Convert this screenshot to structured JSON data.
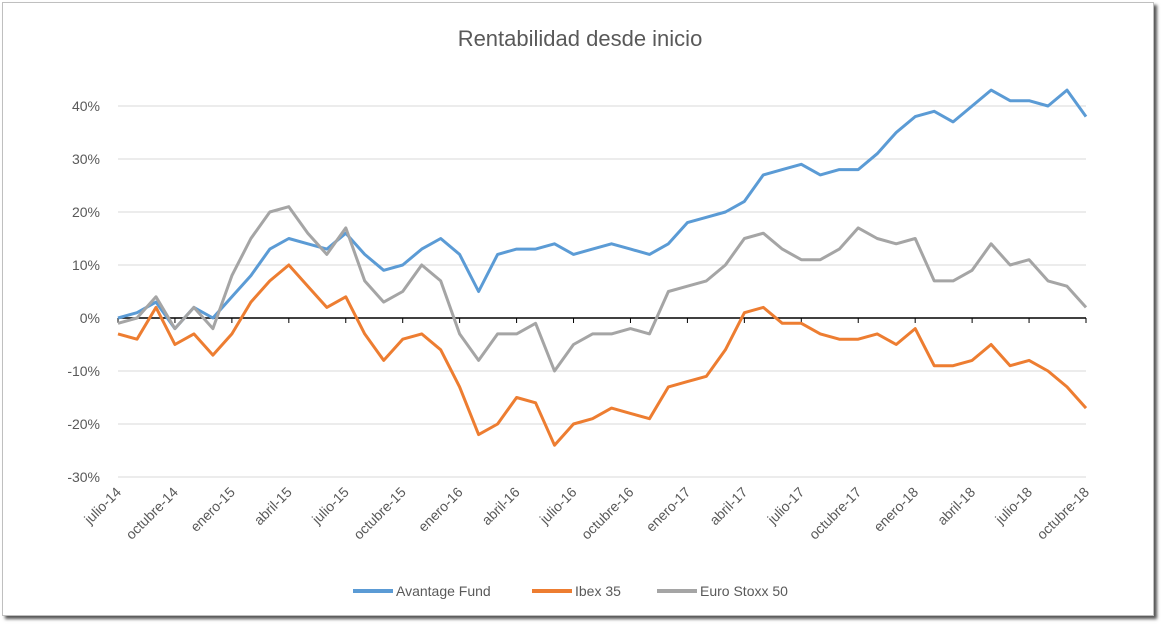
{
  "chart_data": {
    "type": "line",
    "title": "Rentabilidad desde inicio",
    "xlabel": "",
    "ylabel": "",
    "ylim": [
      -0.3,
      0.4
    ],
    "yticks": [
      0.4,
      0.3,
      0.2,
      0.1,
      0.0,
      -0.1,
      -0.2,
      -0.3
    ],
    "ytick_labels": [
      "40%",
      "30%",
      "20%",
      "10%",
      "0%",
      "-10%",
      "-20%",
      "-30%"
    ],
    "xtick_labels": [
      "julio-14",
      "octubre-14",
      "enero-15",
      "abril-15",
      "julio-15",
      "octubre-15",
      "enero-16",
      "abril-16",
      "julio-16",
      "octubre-16",
      "enero-17",
      "abril-17",
      "julio-17",
      "octubre-17",
      "enero-18",
      "abril-18",
      "julio-18",
      "octubre-18"
    ],
    "x_note": "monthly points from julio-14 to octubre-18",
    "grid": "horizontal",
    "legend_position": "bottom",
    "series": [
      {
        "name": "Avantage Fund",
        "color": "#5B9BD5",
        "values": [
          0,
          1,
          3,
          -2,
          2,
          0,
          4,
          8,
          13,
          15,
          14,
          13,
          16,
          12,
          9,
          10,
          13,
          15,
          12,
          5,
          12,
          13,
          13,
          14,
          12,
          13,
          14,
          13,
          12,
          14,
          18,
          19,
          20,
          22,
          27,
          28,
          29,
          27,
          28,
          28,
          31,
          35,
          38,
          39,
          37,
          40,
          43,
          41,
          41,
          40,
          43,
          38
        ]
      },
      {
        "name": "Ibex 35",
        "color": "#ED7D31",
        "values": [
          -3,
          -4,
          2,
          -5,
          -3,
          -7,
          -3,
          3,
          7,
          10,
          6,
          2,
          4,
          -3,
          -8,
          -4,
          -3,
          -6,
          -13,
          -22,
          -20,
          -15,
          -16,
          -24,
          -20,
          -19,
          -17,
          -18,
          -19,
          -13,
          -12,
          -11,
          -6,
          1,
          2,
          -1,
          -1,
          -3,
          -4,
          -4,
          -3,
          -5,
          -2,
          -9,
          -9,
          -8,
          -5,
          -9,
          -8,
          -10,
          -13,
          -17
        ]
      },
      {
        "name": "Euro Stoxx 50",
        "color": "#A5A5A5",
        "values": [
          -1,
          0,
          4,
          -2,
          2,
          -2,
          8,
          15,
          20,
          21,
          16,
          12,
          17,
          7,
          3,
          5,
          10,
          7,
          -3,
          -8,
          -3,
          -3,
          -1,
          -10,
          -5,
          -3,
          -3,
          -2,
          -3,
          5,
          6,
          7,
          10,
          15,
          16,
          13,
          11,
          11,
          13,
          17,
          15,
          14,
          15,
          7,
          7,
          9,
          14,
          10,
          11,
          7,
          6,
          2
        ]
      }
    ]
  }
}
